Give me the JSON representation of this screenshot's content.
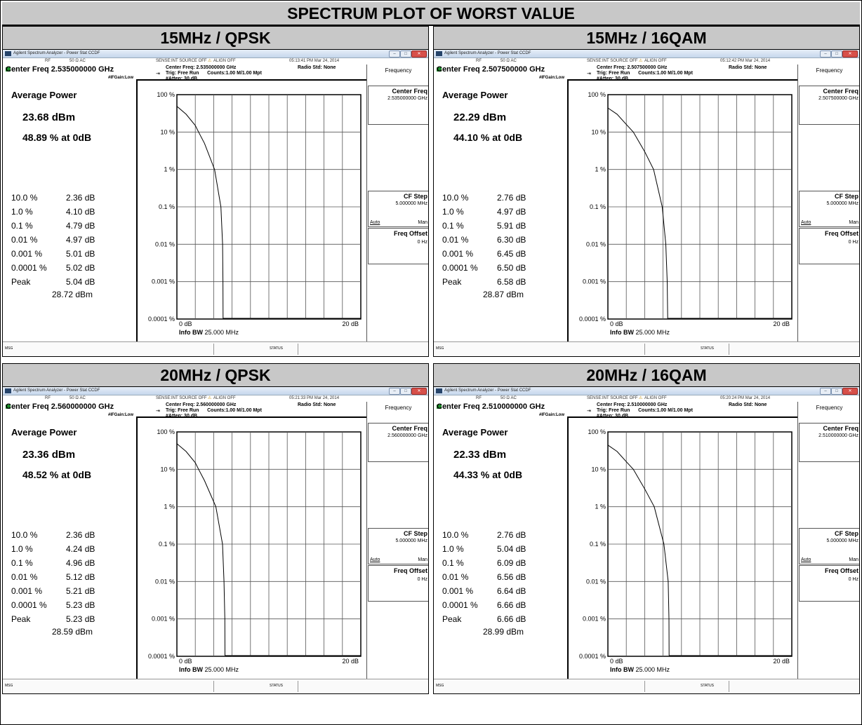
{
  "page_title": "SPECTRUM PLOT OF WORST VALUE",
  "window_title": "Agilent Spectrum Analyzer - Power Stat CCDF",
  "status_bar": {
    "rf": "RF",
    "impedance": "50 Ω  AC",
    "sense": "SENSE:INT  SOURCE OFF",
    "align": "ALIGN OFF"
  },
  "ifgain": "#IFGain:Low",
  "trig": "Trig: Free Run",
  "counts": "Counts:1.00 M/1.00 Mpt",
  "atten": "#Atten: 30 dB",
  "radio_std": "Radio Std: None",
  "avg_title": "Average Power",
  "menu": {
    "title": "Frequency",
    "center_freq_label": "Center Freq",
    "cf_step_label": "CF Step",
    "cf_step_value": "5.000000 MHz",
    "auto": "Auto",
    "man": "Man",
    "freq_offset_label": "Freq Offset",
    "freq_offset_value": "0 Hz"
  },
  "bottom": {
    "msg": "MSG",
    "status": "STATUS"
  },
  "axes": {
    "y_ticks": [
      "100 %",
      "10 %",
      "1 %",
      "0.1 %",
      "0.01 %",
      "0.001 %",
      "0.0001 %"
    ],
    "x_start": "0 dB",
    "x_end": "20 dB",
    "info_bw_label": "Info BW",
    "info_bw_value": "25.000 MHz"
  },
  "panels": [
    {
      "title": "15MHz / QPSK",
      "time": "05:13:41 PM Mar 24, 2014",
      "center_freq_label": "Center Freq 2.535000000 GHz",
      "center_freq_info": "Center Freq: 2.535000000 GHz",
      "center_freq_softkey": "2.535000000 GHz",
      "avg_power": "23.68 dBm",
      "avg_pct": "48.89 % at 0dB",
      "stats": [
        {
          "pct": "10.0 %",
          "db": "2.36 dB"
        },
        {
          "pct": "1.0 %",
          "db": "4.10 dB"
        },
        {
          "pct": "0.1 %",
          "db": "4.79 dB"
        },
        {
          "pct": "0.01 %",
          "db": "4.97 dB"
        },
        {
          "pct": "0.001 %",
          "db": "5.01 dB"
        },
        {
          "pct": "0.0001 %",
          "db": "5.02 dB"
        },
        {
          "pct": "Peak",
          "db": "5.04 dB"
        }
      ],
      "peak_dbm": "28.72 dBm"
    },
    {
      "title": "15MHz / 16QAM",
      "time": "05:12:42 PM Mar 24, 2014",
      "center_freq_label": "Center Freq 2.507500000 GHz",
      "center_freq_info": "Center Freq: 2.507500000 GHz",
      "center_freq_softkey": "2.507500000 GHz",
      "avg_power": "22.29 dBm",
      "avg_pct": "44.10 % at 0dB",
      "stats": [
        {
          "pct": "10.0 %",
          "db": "2.76 dB"
        },
        {
          "pct": "1.0 %",
          "db": "4.97 dB"
        },
        {
          "pct": "0.1 %",
          "db": "5.91 dB"
        },
        {
          "pct": "0.01 %",
          "db": "6.30 dB"
        },
        {
          "pct": "0.001 %",
          "db": "6.45 dB"
        },
        {
          "pct": "0.0001 %",
          "db": "6.50 dB"
        },
        {
          "pct": "Peak",
          "db": "6.58 dB"
        }
      ],
      "peak_dbm": "28.87 dBm"
    },
    {
      "title": "20MHz / QPSK",
      "time": "05:21:33 PM Mar 24, 2014",
      "center_freq_label": "Center Freq 2.560000000 GHz",
      "center_freq_info": "Center Freq: 2.560000000 GHz",
      "center_freq_softkey": "2.560000000 GHz",
      "avg_power": "23.36 dBm",
      "avg_pct": "48.52 % at 0dB",
      "stats": [
        {
          "pct": "10.0 %",
          "db": "2.36 dB"
        },
        {
          "pct": "1.0 %",
          "db": "4.24 dB"
        },
        {
          "pct": "0.1 %",
          "db": "4.96 dB"
        },
        {
          "pct": "0.01 %",
          "db": "5.12 dB"
        },
        {
          "pct": "0.001 %",
          "db": "5.21 dB"
        },
        {
          "pct": "0.0001 %",
          "db": "5.23 dB"
        },
        {
          "pct": "Peak",
          "db": "5.23 dB"
        }
      ],
      "peak_dbm": "28.59 dBm"
    },
    {
      "title": "20MHz / 16QAM",
      "time": "05:20:24 PM Mar 24, 2014",
      "center_freq_label": "Center Freq 2.510000000 GHz",
      "center_freq_info": "Center Freq: 2.510000000 GHz",
      "center_freq_softkey": "2.510000000 GHz",
      "avg_power": "22.33 dBm",
      "avg_pct": "44.33 % at 0dB",
      "stats": [
        {
          "pct": "10.0 %",
          "db": "2.76 dB"
        },
        {
          "pct": "1.0 %",
          "db": "5.04 dB"
        },
        {
          "pct": "0.1 %",
          "db": "6.09 dB"
        },
        {
          "pct": "0.01 %",
          "db": "6.56 dB"
        },
        {
          "pct": "0.001 %",
          "db": "6.64 dB"
        },
        {
          "pct": "0.0001 %",
          "db": "6.66 dB"
        },
        {
          "pct": "Peak",
          "db": "6.66 dB"
        }
      ],
      "peak_dbm": "28.99 dBm"
    }
  ],
  "chart_data": [
    {
      "type": "line",
      "xlabel": "",
      "ylabel": "",
      "xlim": [
        0,
        20
      ],
      "ylim": [
        0.0001,
        100
      ],
      "yscale": "log",
      "series": [
        {
          "x": [
            0,
            1,
            2,
            2.36,
            3,
            4.1,
            4.79,
            4.97,
            5.01,
            5.02,
            5.04
          ],
          "y": [
            48.89,
            30,
            15,
            10,
            5,
            1,
            0.1,
            0.01,
            0.001,
            0.0001,
            0.0001
          ]
        }
      ]
    },
    {
      "type": "line",
      "xlabel": "",
      "ylabel": "",
      "xlim": [
        0,
        20
      ],
      "ylim": [
        0.0001,
        100
      ],
      "yscale": "log",
      "series": [
        {
          "x": [
            0,
            1,
            2,
            2.76,
            4,
            4.97,
            5.91,
            6.3,
            6.45,
            6.5,
            6.58
          ],
          "y": [
            44.1,
            30,
            16,
            10,
            3,
            1,
            0.1,
            0.01,
            0.001,
            0.0001,
            0.0001
          ]
        }
      ]
    },
    {
      "type": "line",
      "xlabel": "",
      "ylabel": "",
      "xlim": [
        0,
        20
      ],
      "ylim": [
        0.0001,
        100
      ],
      "yscale": "log",
      "series": [
        {
          "x": [
            0,
            1,
            2,
            2.36,
            3,
            4.24,
            4.96,
            5.12,
            5.21,
            5.23,
            5.23
          ],
          "y": [
            48.52,
            30,
            15,
            10,
            5,
            1,
            0.1,
            0.01,
            0.001,
            0.0001,
            0.0001
          ]
        }
      ]
    },
    {
      "type": "line",
      "xlabel": "",
      "ylabel": "",
      "xlim": [
        0,
        20
      ],
      "ylim": [
        0.0001,
        100
      ],
      "yscale": "log",
      "series": [
        {
          "x": [
            0,
            1,
            2,
            2.76,
            4,
            5.04,
            6.09,
            6.56,
            6.64,
            6.66,
            6.66
          ],
          "y": [
            44.33,
            30,
            16,
            10,
            3,
            1,
            0.1,
            0.01,
            0.001,
            0.0001,
            0.0001
          ]
        }
      ]
    }
  ]
}
